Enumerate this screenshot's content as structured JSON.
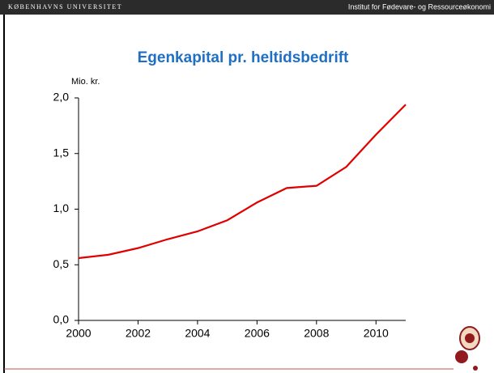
{
  "header": {
    "left": "KØBENHAVNS UNIVERSITET",
    "right": "Institut for Fødevare- og Ressourceøkonomi"
  },
  "chart_data": {
    "type": "line",
    "title": "Egenkapital pr. heltidsbedrift",
    "y_label": "Mio. kr.",
    "x": [
      2000,
      2001,
      2002,
      2003,
      2004,
      2005,
      2006,
      2007,
      2008,
      2009,
      2010,
      2011
    ],
    "series": [
      {
        "name": "Egenkapital",
        "color": "#e00000",
        "values": [
          0.56,
          0.59,
          0.65,
          0.73,
          0.8,
          0.9,
          1.06,
          1.19,
          1.21,
          1.38,
          1.67,
          1.94
        ]
      }
    ],
    "xlim": [
      2000,
      2011
    ],
    "xticks": [
      2000,
      2002,
      2004,
      2006,
      2008,
      2010
    ],
    "ylim": [
      0,
      2
    ],
    "yticks": [
      {
        "value": 0,
        "label": "0,0"
      },
      {
        "value": 0.5,
        "label": "0,5"
      },
      {
        "value": 1,
        "label": "1,0"
      },
      {
        "value": 1.5,
        "label": "1,5"
      },
      {
        "value": 2,
        "label": "2,0"
      }
    ],
    "legend": false
  }
}
